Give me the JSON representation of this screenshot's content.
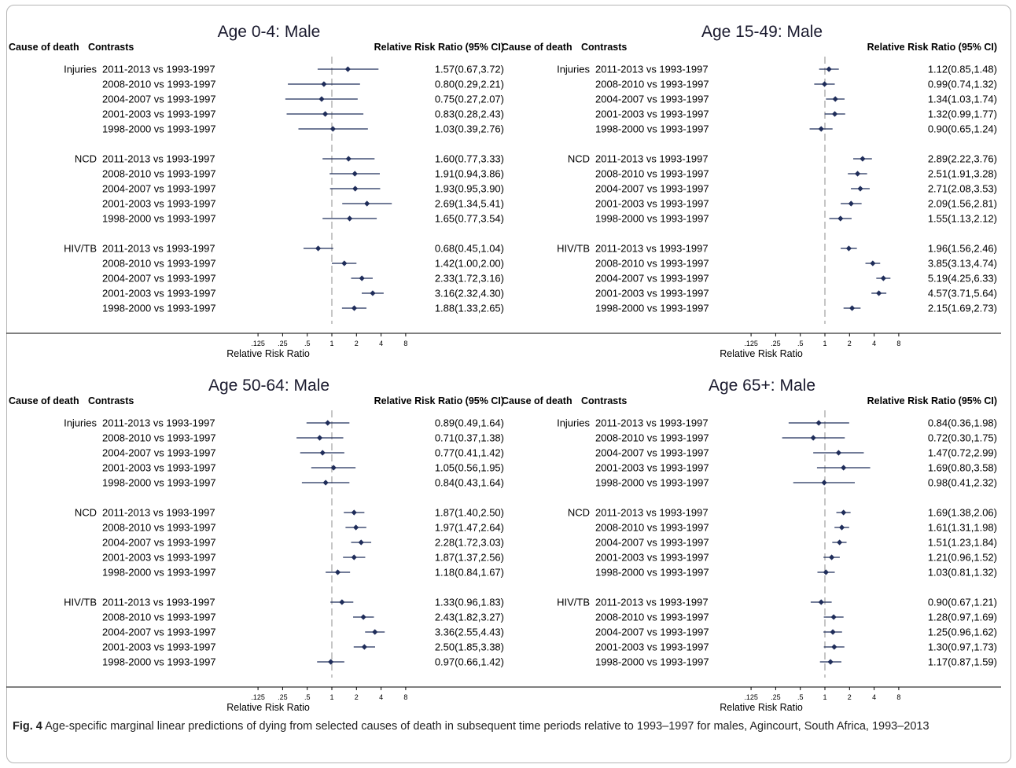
{
  "figure": {
    "caption_label": "Fig. 4",
    "caption_text": "Age-specific marginal linear predictions of dying from selected causes of death in subsequent time periods relative to 1993–1997 for males, Agincourt, South Africa, 1993–2013"
  },
  "colors": {
    "marker": "#1f2d5a",
    "ref_line": "#8c8c8c",
    "axis": "#000000"
  },
  "chart_data": [
    {
      "type": "forest",
      "title": "Age 0-4: Male",
      "header_cause": "Cause of death",
      "header_contrast": "Contrasts",
      "header_ci": "Relative Risk Ratio (95% CI)",
      "xlabel": "Relative Risk Ratio",
      "xscale": "log2",
      "ticks": [
        ".125",
        ".25",
        ".5",
        "1",
        "2",
        "4",
        "8"
      ],
      "reference": 1,
      "groups": [
        {
          "cause": "Injuries",
          "rows": [
            {
              "contrast": "2011-2013 vs 1993-1997",
              "rr": 1.57,
              "lo": 0.67,
              "hi": 3.72,
              "label": "1.57(0.67,3.72)"
            },
            {
              "contrast": "2008-2010 vs 1993-1997",
              "rr": 0.8,
              "lo": 0.29,
              "hi": 2.21,
              "label": "0.80(0.29,2.21)"
            },
            {
              "contrast": "2004-2007 vs 1993-1997",
              "rr": 0.75,
              "lo": 0.27,
              "hi": 2.07,
              "label": "0.75(0.27,2.07)"
            },
            {
              "contrast": "2001-2003 vs 1993-1997",
              "rr": 0.83,
              "lo": 0.28,
              "hi": 2.43,
              "label": "0.83(0.28,2.43)"
            },
            {
              "contrast": "1998-2000 vs 1993-1997",
              "rr": 1.03,
              "lo": 0.39,
              "hi": 2.76,
              "label": "1.03(0.39,2.76)"
            }
          ]
        },
        {
          "cause": "NCD",
          "rows": [
            {
              "contrast": "2011-2013 vs 1993-1997",
              "rr": 1.6,
              "lo": 0.77,
              "hi": 3.33,
              "label": "1.60(0.77,3.33)"
            },
            {
              "contrast": "2008-2010 vs 1993-1997",
              "rr": 1.91,
              "lo": 0.94,
              "hi": 3.86,
              "label": "1.91(0.94,3.86)"
            },
            {
              "contrast": "2004-2007 vs 1993-1997",
              "rr": 1.93,
              "lo": 0.95,
              "hi": 3.9,
              "label": "1.93(0.95,3.90)"
            },
            {
              "contrast": "2001-2003 vs 1993-1997",
              "rr": 2.69,
              "lo": 1.34,
              "hi": 5.41,
              "label": "2.69(1.34,5.41)"
            },
            {
              "contrast": "1998-2000 vs 1993-1997",
              "rr": 1.65,
              "lo": 0.77,
              "hi": 3.54,
              "label": "1.65(0.77,3.54)"
            }
          ]
        },
        {
          "cause": "HIV/TB",
          "rows": [
            {
              "contrast": "2011-2013 vs 1993-1997",
              "rr": 0.68,
              "lo": 0.45,
              "hi": 1.04,
              "label": "0.68(0.45,1.04)"
            },
            {
              "contrast": "2008-2010 vs 1993-1997",
              "rr": 1.42,
              "lo": 1.0,
              "hi": 2.0,
              "label": "1.42(1.00,2.00)"
            },
            {
              "contrast": "2004-2007 vs 1993-1997",
              "rr": 2.33,
              "lo": 1.72,
              "hi": 3.16,
              "label": "2.33(1.72,3.16)"
            },
            {
              "contrast": "2001-2003 vs 1993-1997",
              "rr": 3.16,
              "lo": 2.32,
              "hi": 4.3,
              "label": "3.16(2.32,4.30)"
            },
            {
              "contrast": "1998-2000 vs 1993-1997",
              "rr": 1.88,
              "lo": 1.33,
              "hi": 2.65,
              "label": "1.88(1.33,2.65)"
            }
          ]
        }
      ]
    },
    {
      "type": "forest",
      "title": "Age 15-49: Male",
      "header_cause": "Cause of death",
      "header_contrast": "Contrasts",
      "header_ci": "Relative Risk Ratio (95% CI)",
      "xlabel": "Relative Risk Ratio",
      "xscale": "log2",
      "ticks": [
        ".125",
        ".25",
        ".5",
        "1",
        "2",
        "4",
        "8"
      ],
      "reference": 1,
      "groups": [
        {
          "cause": "Injuries",
          "rows": [
            {
              "contrast": "2011-2013 vs 1993-1997",
              "rr": 1.12,
              "lo": 0.85,
              "hi": 1.48,
              "label": "1.12(0.85,1.48)"
            },
            {
              "contrast": "2008-2010 vs 1993-1997",
              "rr": 0.99,
              "lo": 0.74,
              "hi": 1.32,
              "label": "0.99(0.74,1.32)"
            },
            {
              "contrast": "2004-2007 vs 1993-1997",
              "rr": 1.34,
              "lo": 1.03,
              "hi": 1.74,
              "label": "1.34(1.03,1.74)"
            },
            {
              "contrast": "2001-2003 vs 1993-1997",
              "rr": 1.32,
              "lo": 0.99,
              "hi": 1.77,
              "label": "1.32(0.99,1.77)"
            },
            {
              "contrast": "1998-2000 vs 1993-1997",
              "rr": 0.9,
              "lo": 0.65,
              "hi": 1.24,
              "label": "0.90(0.65,1.24)"
            }
          ]
        },
        {
          "cause": "NCD",
          "rows": [
            {
              "contrast": "2011-2013 vs 1993-1997",
              "rr": 2.89,
              "lo": 2.22,
              "hi": 3.76,
              "label": "2.89(2.22,3.76)"
            },
            {
              "contrast": "2008-2010 vs 1993-1997",
              "rr": 2.51,
              "lo": 1.91,
              "hi": 3.28,
              "label": "2.51(1.91,3.28)"
            },
            {
              "contrast": "2004-2007 vs 1993-1997",
              "rr": 2.71,
              "lo": 2.08,
              "hi": 3.53,
              "label": "2.71(2.08,3.53)"
            },
            {
              "contrast": "2001-2003 vs 1993-1997",
              "rr": 2.09,
              "lo": 1.56,
              "hi": 2.81,
              "label": "2.09(1.56,2.81)"
            },
            {
              "contrast": "1998-2000 vs 1993-1997",
              "rr": 1.55,
              "lo": 1.13,
              "hi": 2.12,
              "label": "1.55(1.13,2.12)"
            }
          ]
        },
        {
          "cause": "HIV/TB",
          "rows": [
            {
              "contrast": "2011-2013 vs 1993-1997",
              "rr": 1.96,
              "lo": 1.56,
              "hi": 2.46,
              "label": "1.96(1.56,2.46)"
            },
            {
              "contrast": "2008-2010 vs 1993-1997",
              "rr": 3.85,
              "lo": 3.13,
              "hi": 4.74,
              "label": "3.85(3.13,4.74)"
            },
            {
              "contrast": "2004-2007 vs 1993-1997",
              "rr": 5.19,
              "lo": 4.25,
              "hi": 6.33,
              "label": "5.19(4.25,6.33)"
            },
            {
              "contrast": "2001-2003 vs 1993-1997",
              "rr": 4.57,
              "lo": 3.71,
              "hi": 5.64,
              "label": "4.57(3.71,5.64)"
            },
            {
              "contrast": "1998-2000 vs 1993-1997",
              "rr": 2.15,
              "lo": 1.69,
              "hi": 2.73,
              "label": "2.15(1.69,2.73)"
            }
          ]
        }
      ]
    },
    {
      "type": "forest",
      "title": "Age 50-64: Male",
      "header_cause": "Cause of death",
      "header_contrast": "Contrasts",
      "header_ci": "Relative Risk Ratio (95% CI)",
      "xlabel": "Relative Risk Ratio",
      "xscale": "log2",
      "ticks": [
        ".125",
        ".25",
        ".5",
        "1",
        "2",
        "4",
        "8"
      ],
      "reference": 1,
      "groups": [
        {
          "cause": "Injuries",
          "rows": [
            {
              "contrast": "2011-2013 vs 1993-1997",
              "rr": 0.89,
              "lo": 0.49,
              "hi": 1.64,
              "label": "0.89(0.49,1.64)"
            },
            {
              "contrast": "2008-2010 vs 1993-1997",
              "rr": 0.71,
              "lo": 0.37,
              "hi": 1.38,
              "label": "0.71(0.37,1.38)"
            },
            {
              "contrast": "2004-2007 vs 1993-1997",
              "rr": 0.77,
              "lo": 0.41,
              "hi": 1.42,
              "label": "0.77(0.41,1.42)"
            },
            {
              "contrast": "2001-2003 vs 1993-1997",
              "rr": 1.05,
              "lo": 0.56,
              "hi": 1.95,
              "label": "1.05(0.56,1.95)"
            },
            {
              "contrast": "1998-2000 vs 1993-1997",
              "rr": 0.84,
              "lo": 0.43,
              "hi": 1.64,
              "label": "0.84(0.43,1.64)"
            }
          ]
        },
        {
          "cause": "NCD",
          "rows": [
            {
              "contrast": "2011-2013 vs 1993-1997",
              "rr": 1.87,
              "lo": 1.4,
              "hi": 2.5,
              "label": "1.87(1.40,2.50)"
            },
            {
              "contrast": "2008-2010 vs 1993-1997",
              "rr": 1.97,
              "lo": 1.47,
              "hi": 2.64,
              "label": "1.97(1.47,2.64)"
            },
            {
              "contrast": "2004-2007 vs 1993-1997",
              "rr": 2.28,
              "lo": 1.72,
              "hi": 3.03,
              "label": "2.28(1.72,3.03)"
            },
            {
              "contrast": "2001-2003 vs 1993-1997",
              "rr": 1.87,
              "lo": 1.37,
              "hi": 2.56,
              "label": "1.87(1.37,2.56)"
            },
            {
              "contrast": "1998-2000 vs 1993-1997",
              "rr": 1.18,
              "lo": 0.84,
              "hi": 1.67,
              "label": "1.18(0.84,1.67)"
            }
          ]
        },
        {
          "cause": "HIV/TB",
          "rows": [
            {
              "contrast": "2011-2013 vs 1993-1997",
              "rr": 1.33,
              "lo": 0.96,
              "hi": 1.83,
              "label": "1.33(0.96,1.83)"
            },
            {
              "contrast": "2008-2010 vs 1993-1997",
              "rr": 2.43,
              "lo": 1.82,
              "hi": 3.27,
              "label": "2.43(1.82,3.27)"
            },
            {
              "contrast": "2004-2007 vs 1993-1997",
              "rr": 3.36,
              "lo": 2.55,
              "hi": 4.43,
              "label": "3.36(2.55,4.43)"
            },
            {
              "contrast": "2001-2003 vs 1993-1997",
              "rr": 2.5,
              "lo": 1.85,
              "hi": 3.38,
              "label": "2.50(1.85,3.38)"
            },
            {
              "contrast": "1998-2000 vs 1993-1997",
              "rr": 0.97,
              "lo": 0.66,
              "hi": 1.42,
              "label": "0.97(0.66,1.42)"
            }
          ]
        }
      ]
    },
    {
      "type": "forest",
      "title": "Age 65+: Male",
      "header_cause": "Cause of death",
      "header_contrast": "Contrasts",
      "header_ci": "Relative Risk Ratio (95% CI)",
      "xlabel": "Relative Risk Ratio",
      "xscale": "log2",
      "ticks": [
        ".125",
        ".25",
        ".5",
        "1",
        "2",
        "4",
        "8"
      ],
      "reference": 1,
      "groups": [
        {
          "cause": "Injuries",
          "rows": [
            {
              "contrast": "2011-2013 vs 1993-1997",
              "rr": 0.84,
              "lo": 0.36,
              "hi": 1.98,
              "label": "0.84(0.36,1.98)"
            },
            {
              "contrast": "2008-2010 vs 1993-1997",
              "rr": 0.72,
              "lo": 0.3,
              "hi": 1.75,
              "label": "0.72(0.30,1.75)"
            },
            {
              "contrast": "2004-2007 vs 1993-1997",
              "rr": 1.47,
              "lo": 0.72,
              "hi": 2.99,
              "label": "1.47(0.72,2.99)"
            },
            {
              "contrast": "2001-2003 vs 1993-1997",
              "rr": 1.69,
              "lo": 0.8,
              "hi": 3.58,
              "label": "1.69(0.80,3.58)"
            },
            {
              "contrast": "1998-2000 vs 1993-1997",
              "rr": 0.98,
              "lo": 0.41,
              "hi": 2.32,
              "label": "0.98(0.41,2.32)"
            }
          ]
        },
        {
          "cause": "NCD",
          "rows": [
            {
              "contrast": "2011-2013 vs 1993-1997",
              "rr": 1.69,
              "lo": 1.38,
              "hi": 2.06,
              "label": "1.69(1.38,2.06)"
            },
            {
              "contrast": "2008-2010 vs 1993-1997",
              "rr": 1.61,
              "lo": 1.31,
              "hi": 1.98,
              "label": "1.61(1.31,1.98)"
            },
            {
              "contrast": "2004-2007 vs 1993-1997",
              "rr": 1.51,
              "lo": 1.23,
              "hi": 1.84,
              "label": "1.51(1.23,1.84)"
            },
            {
              "contrast": "2001-2003 vs 1993-1997",
              "rr": 1.21,
              "lo": 0.96,
              "hi": 1.52,
              "label": "1.21(0.96,1.52)"
            },
            {
              "contrast": "1998-2000 vs 1993-1997",
              "rr": 1.03,
              "lo": 0.81,
              "hi": 1.32,
              "label": "1.03(0.81,1.32)"
            }
          ]
        },
        {
          "cause": "HIV/TB",
          "rows": [
            {
              "contrast": "2011-2013 vs 1993-1997",
              "rr": 0.9,
              "lo": 0.67,
              "hi": 1.21,
              "label": "0.90(0.67,1.21)"
            },
            {
              "contrast": "2008-2010 vs 1993-1997",
              "rr": 1.28,
              "lo": 0.97,
              "hi": 1.69,
              "label": "1.28(0.97,1.69)"
            },
            {
              "contrast": "2004-2007 vs 1993-1997",
              "rr": 1.25,
              "lo": 0.96,
              "hi": 1.62,
              "label": "1.25(0.96,1.62)"
            },
            {
              "contrast": "2001-2003 vs 1993-1997",
              "rr": 1.3,
              "lo": 0.97,
              "hi": 1.73,
              "label": "1.30(0.97,1.73)"
            },
            {
              "contrast": "1998-2000 vs 1993-1997",
              "rr": 1.17,
              "lo": 0.87,
              "hi": 1.59,
              "label": "1.17(0.87,1.59)"
            }
          ]
        }
      ]
    }
  ]
}
